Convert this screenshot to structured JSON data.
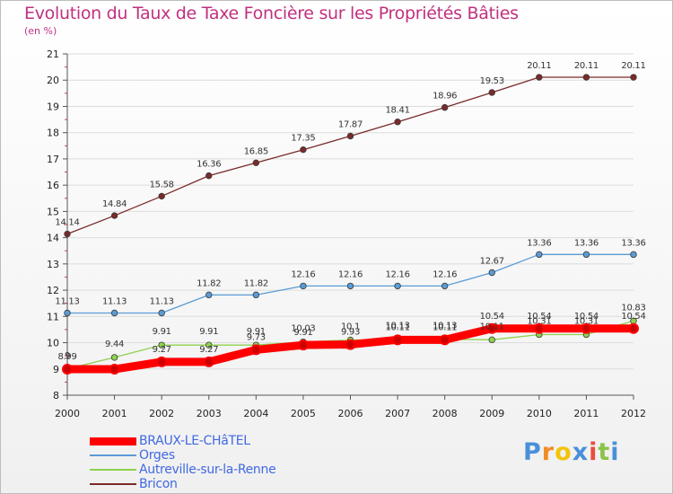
{
  "header": {
    "title": "Evolution du Taux de Taxe Foncière sur les Propriétés Bâties",
    "subtitle": "(en %)"
  },
  "chart_data": {
    "type": "line",
    "x": [
      "2000",
      "2001",
      "2002",
      "2003",
      "2004",
      "2005",
      "2006",
      "2007",
      "2008",
      "2009",
      "2010",
      "2011",
      "2012"
    ],
    "ylim": [
      8,
      21
    ],
    "yticks": [
      8,
      9,
      10,
      11,
      12,
      13,
      14,
      15,
      16,
      17,
      18,
      19,
      20,
      21
    ],
    "grid": "horizontal",
    "legend_position": "bottom-left",
    "series": [
      {
        "name": "BRAUX-LE-CHâTEL",
        "color": "#ff0000",
        "values": [
          8.99,
          8.99,
          9.27,
          9.27,
          9.73,
          9.91,
          9.93,
          10.11,
          10.11,
          10.54,
          10.54,
          10.54,
          10.54
        ],
        "labels": [
          "8.99",
          "",
          "9.27",
          "9.27",
          "9.73",
          "9.91",
          "9.93",
          "10.11",
          "10.11",
          "10.54",
          "10.54",
          "10.54",
          "10.54"
        ]
      },
      {
        "name": "Orges",
        "color": "#5b9bd5",
        "values": [
          11.13,
          11.13,
          11.13,
          11.82,
          11.82,
          12.16,
          12.16,
          12.16,
          12.16,
          12.67,
          13.36,
          13.36,
          13.36
        ],
        "labels": [
          "11.13",
          "11.13",
          "11.13",
          "11.82",
          "11.82",
          "12.16",
          "12.16",
          "12.16",
          "12.16",
          "12.67",
          "13.36",
          "13.36",
          "13.36"
        ]
      },
      {
        "name": "Autreville-sur-la-Renne",
        "color": "#8fd14f",
        "values": [
          9,
          9.44,
          9.91,
          9.91,
          9.91,
          10.03,
          10.1,
          10.13,
          10.13,
          10.11,
          10.31,
          10.31,
          10.83
        ],
        "labels": [
          "9",
          "9.44",
          "9.91",
          "9.91",
          "9.91",
          "10.03",
          "10.1",
          "10.13",
          "10.13",
          "10.11",
          "10.31",
          "10.31",
          "10.83"
        ]
      },
      {
        "name": "Bricon",
        "color": "#7b2a2a",
        "values": [
          14.14,
          14.84,
          15.58,
          16.36,
          16.85,
          17.35,
          17.87,
          18.41,
          18.96,
          19.53,
          20.11,
          20.11,
          20.11
        ],
        "labels": [
          "14.14",
          "14.84",
          "15.58",
          "16.36",
          "16.85",
          "17.35",
          "17.87",
          "18.41",
          "18.96",
          "19.53",
          "20.11",
          "20.11",
          "20.11"
        ]
      }
    ]
  },
  "logo": {
    "text": "Proxiti",
    "letter_colors": [
      "#4a90d9",
      "#f28c28",
      "#f2c40c",
      "#4a90d9",
      "#e94e3c",
      "#8bc34a",
      "#4a90d9"
    ]
  }
}
